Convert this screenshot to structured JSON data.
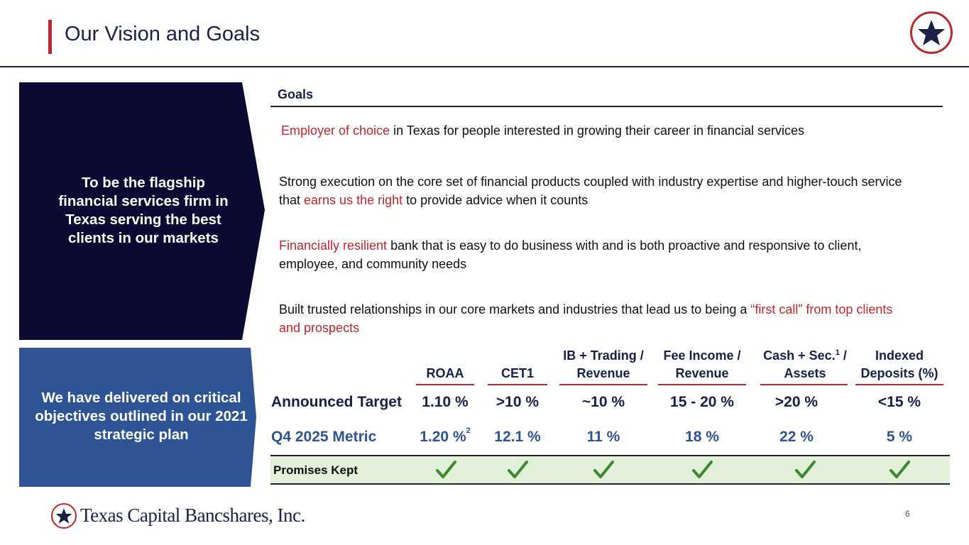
{
  "header": {
    "title": "Our Vision and Goals",
    "accent_color": "#c0262d",
    "navy_color": "#1a1f4a"
  },
  "vision": {
    "text": "To be the flagship financial services firm in Texas serving the best clients in our markets"
  },
  "delivered": {
    "text": "We have delivered on critical objectives outlined in our 2021 strategic plan"
  },
  "goals": {
    "label": "Goals",
    "items": [
      {
        "pre": "",
        "hl": "Employer of choice",
        "post": " in Texas for people interested in growing their career in financial services"
      },
      {
        "pre": "Strong execution on the core set of financial products coupled with industry expertise and higher-touch service that ",
        "hl": "earns us the right",
        "post": " to provide advice when it counts"
      },
      {
        "pre": "",
        "hl": "Financially resilient",
        "post": " bank that is easy to do business with and is both proactive and responsive to client, employee, and community needs"
      },
      {
        "pre": "Built trusted relationships in our core markets and industries that lead us to being a ",
        "hl": "“first call” from top clients and prospects",
        "post": ""
      }
    ]
  },
  "table": {
    "columns": [
      {
        "label": "ROAA"
      },
      {
        "label": "CET1"
      },
      {
        "label": "IB + Trading / Revenue"
      },
      {
        "label": "Fee Income / Revenue"
      },
      {
        "label_pre": "Cash + Sec.",
        "sup": "1",
        "label_post": " / Assets"
      },
      {
        "label": "Indexed Deposits (%)"
      }
    ],
    "target_label": "Announced Target",
    "targets": [
      "1.10 %",
      ">10 %",
      "~10 %",
      "15 - 20 %",
      ">20 %",
      "<15 %"
    ],
    "metric_label": "Q4 2025 Metric",
    "metrics": [
      "1.20 %",
      "12.1 %",
      "11 %",
      "18 %",
      "22 %",
      "5 %"
    ],
    "metric_footnote": "2",
    "promises_label": "Promises Kept",
    "checks": [
      "check-icon",
      "check-icon",
      "check-icon",
      "check-icon",
      "check-icon",
      "check-icon"
    ]
  },
  "footer": {
    "company": "Texas Capital Bancshares, Inc.",
    "page": "6"
  }
}
